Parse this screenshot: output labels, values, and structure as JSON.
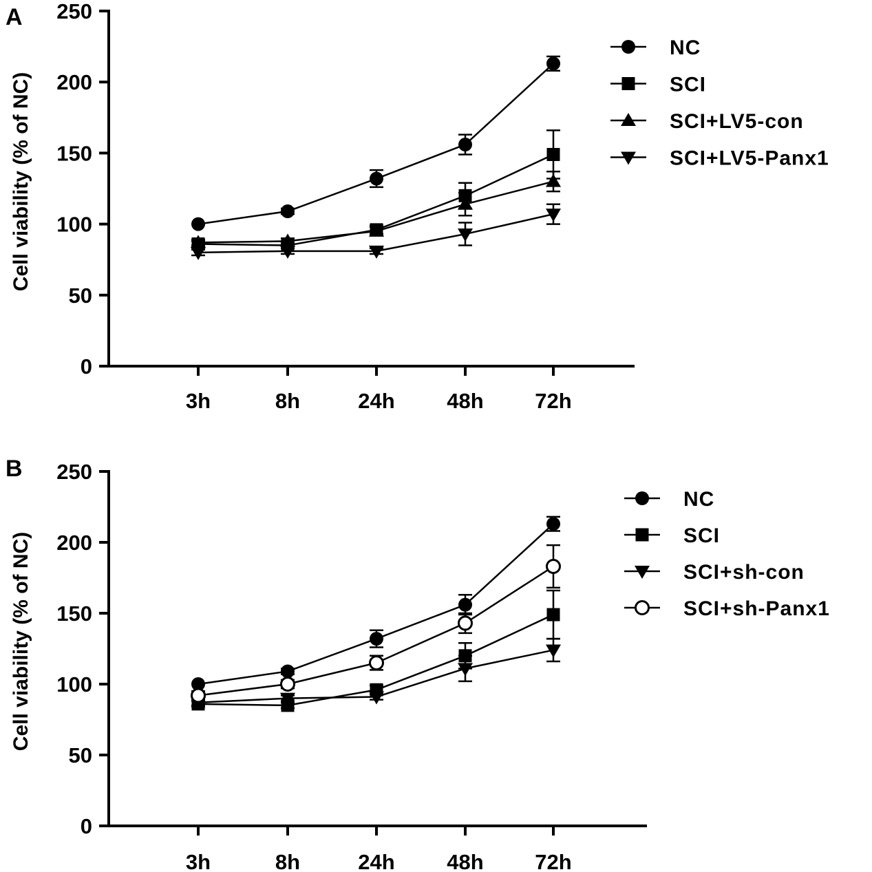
{
  "chart_data": [
    {
      "type": "line",
      "panel_label": "A",
      "ylabel": "Cell viability (% of NC)",
      "xlabel": "",
      "categories": [
        "3h",
        "8h",
        "24h",
        "48h",
        "72h"
      ],
      "y_ticks": [
        "0",
        "50",
        "100",
        "150",
        "200",
        "250"
      ],
      "ylim": [
        0,
        250
      ],
      "legend_position": "top-right",
      "series": [
        {
          "name": "NC",
          "marker": "circle",
          "values": [
            100,
            109,
            132,
            156,
            213
          ],
          "errors": [
            0,
            2,
            6,
            7,
            5
          ]
        },
        {
          "name": "SCI",
          "marker": "square",
          "values": [
            86,
            85,
            96,
            120,
            149
          ],
          "errors": [
            2,
            2,
            3,
            9,
            17
          ]
        },
        {
          "name": "SCI+LV5-con",
          "marker": "triangle-up",
          "values": [
            87,
            88,
            95,
            114,
            130
          ],
          "errors": [
            2,
            2,
            3,
            8,
            7
          ]
        },
        {
          "name": "SCI+LV5-Panx1",
          "marker": "triangle-down",
          "values": [
            80,
            81,
            81,
            93,
            107
          ],
          "errors": [
            2,
            2,
            2,
            8,
            7
          ]
        }
      ]
    },
    {
      "type": "line",
      "panel_label": "B",
      "ylabel": "Cell viability (% of NC)",
      "xlabel": "",
      "categories": [
        "3h",
        "8h",
        "24h",
        "48h",
        "72h"
      ],
      "y_ticks": [
        "0",
        "50",
        "100",
        "150",
        "200",
        "250"
      ],
      "ylim": [
        0,
        250
      ],
      "legend_position": "top-right",
      "series": [
        {
          "name": "NC",
          "marker": "circle",
          "values": [
            100,
            109,
            132,
            156,
            213
          ],
          "errors": [
            0,
            2,
            6,
            7,
            5
          ]
        },
        {
          "name": "SCI",
          "marker": "square",
          "values": [
            86,
            85,
            96,
            120,
            149
          ],
          "errors": [
            2,
            2,
            3,
            9,
            17
          ]
        },
        {
          "name": "SCI+sh-con",
          "marker": "triangle-down",
          "values": [
            87,
            90,
            91,
            111,
            124
          ],
          "errors": [
            2,
            2,
            2,
            9,
            8
          ]
        },
        {
          "name": "SCI+sh-Panx1",
          "marker": "circle-open",
          "values": [
            92,
            100,
            115,
            143,
            183
          ],
          "errors": [
            3,
            3,
            5,
            7,
            15
          ]
        }
      ]
    }
  ]
}
